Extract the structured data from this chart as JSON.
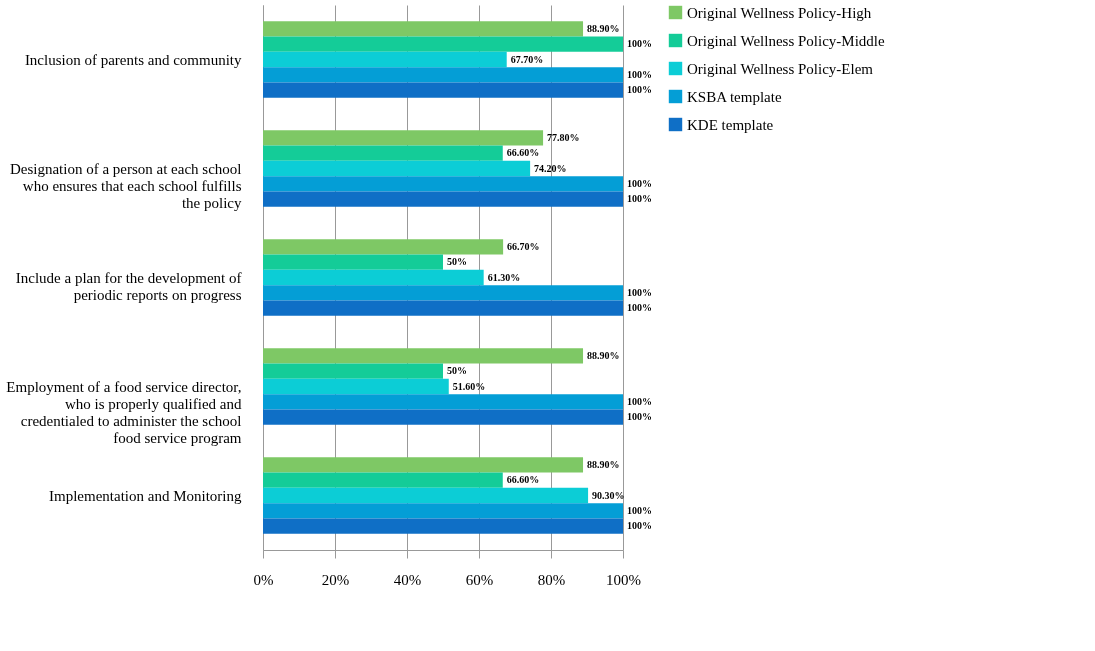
{
  "chart_data": {
    "type": "bar",
    "orientation": "horizontal",
    "categories": [
      "Inclusion of parents and community",
      "Designation of a person at each school who ensures that each school fulfills the policy",
      "Include a plan for the development of periodic reports on progress",
      "Employment of a food service director, who is properly qualified and credentialed to administer the school food service program",
      "Implementation and Monitoring"
    ],
    "series": [
      {
        "name": "Original Wellness Policy-High",
        "color": "#7ec865",
        "values": [
          88.9,
          77.8,
          66.7,
          88.9,
          88.9
        ],
        "value_labels": [
          "88.90%",
          "77.80%",
          "66.70%",
          "88.90%",
          "88.90%"
        ]
      },
      {
        "name": "Original Wellness Policy-Middle",
        "color": "#14cc98",
        "values": [
          100,
          66.6,
          50,
          50,
          66.6
        ],
        "value_labels": [
          "100%",
          "66.60%",
          "50%",
          "50%",
          "66.60%"
        ]
      },
      {
        "name": "Original Wellness Policy-Elem",
        "color": "#0ccdd6",
        "values": [
          67.7,
          74.2,
          61.3,
          51.6,
          90.3
        ],
        "value_labels": [
          "67.70%",
          "74.20%",
          "61.30%",
          "51.60%",
          "90.30%"
        ]
      },
      {
        "name": "KSBA template",
        "color": "#049ed6",
        "values": [
          100,
          100,
          100,
          100,
          100
        ],
        "value_labels": [
          "100%",
          "100%",
          "100%",
          "100%",
          "100%"
        ]
      },
      {
        "name": "KDE template",
        "color": "#0f6fc6",
        "values": [
          100,
          100,
          100,
          100,
          100
        ],
        "value_labels": [
          "100%",
          "100%",
          "100%",
          "100%",
          "100%"
        ]
      }
    ],
    "xlim": [
      0,
      100
    ],
    "xticks": [
      {
        "value": 0,
        "label": "0%"
      },
      {
        "value": 20,
        "label": "20%"
      },
      {
        "value": 40,
        "label": "40%"
      },
      {
        "value": 60,
        "label": "60%"
      },
      {
        "value": 80,
        "label": "80%"
      },
      {
        "value": 100,
        "label": "100%"
      }
    ],
    "grid": "x",
    "legend": "right"
  }
}
